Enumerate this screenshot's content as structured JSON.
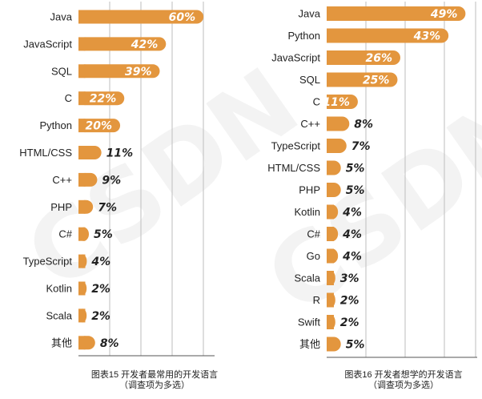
{
  "colors": {
    "bar": "#E3963E",
    "grid": "#bdbdbd",
    "text": "#222222"
  },
  "watermark": "CSDN",
  "chart_data": [
    {
      "type": "bar",
      "orientation": "horizontal",
      "caption_line1": "图表15 开发者最常用的开发语言",
      "caption_line2": "（调查项为多选）",
      "categories": [
        "Java",
        "JavaScript",
        "SQL",
        "C",
        "Python",
        "HTML/CSS",
        "C++",
        "PHP",
        "C#",
        "TypeScript",
        "Kotlin",
        "Scala",
        "其他"
      ],
      "values": [
        60,
        42,
        39,
        22,
        20,
        11,
        9,
        7,
        5,
        4,
        2,
        2,
        8
      ],
      "labels": [
        "60%",
        "42%",
        "39%",
        "22%",
        "20%",
        "11%",
        "9%",
        "7%",
        "5%",
        "4%",
        "2%",
        "2%",
        "8%"
      ],
      "unit": "%",
      "xlim": [
        0,
        65
      ],
      "grid": true
    },
    {
      "type": "bar",
      "orientation": "horizontal",
      "caption_line1": "图表16 开发者想学的开发语言",
      "caption_line2": "（调查项为多选）",
      "categories": [
        "Java",
        "Python",
        "JavaScript",
        "SQL",
        "C",
        "C++",
        "TypeScript",
        "HTML/CSS",
        "PHP",
        "Kotlin",
        "C#",
        "Go",
        "Scala",
        "R",
        "Swift",
        "其他"
      ],
      "values": [
        49,
        43,
        26,
        25,
        11,
        8,
        7,
        5,
        5,
        4,
        4,
        4,
        3,
        2,
        2,
        5
      ],
      "labels": [
        "49%",
        "43%",
        "26%",
        "25%",
        "11%",
        "8%",
        "7%",
        "5%",
        "5%",
        "4%",
        "4%",
        "4%",
        "3%",
        "2%",
        "2%",
        "5%"
      ],
      "unit": "%",
      "xlim": [
        0,
        52
      ],
      "grid": true
    }
  ]
}
